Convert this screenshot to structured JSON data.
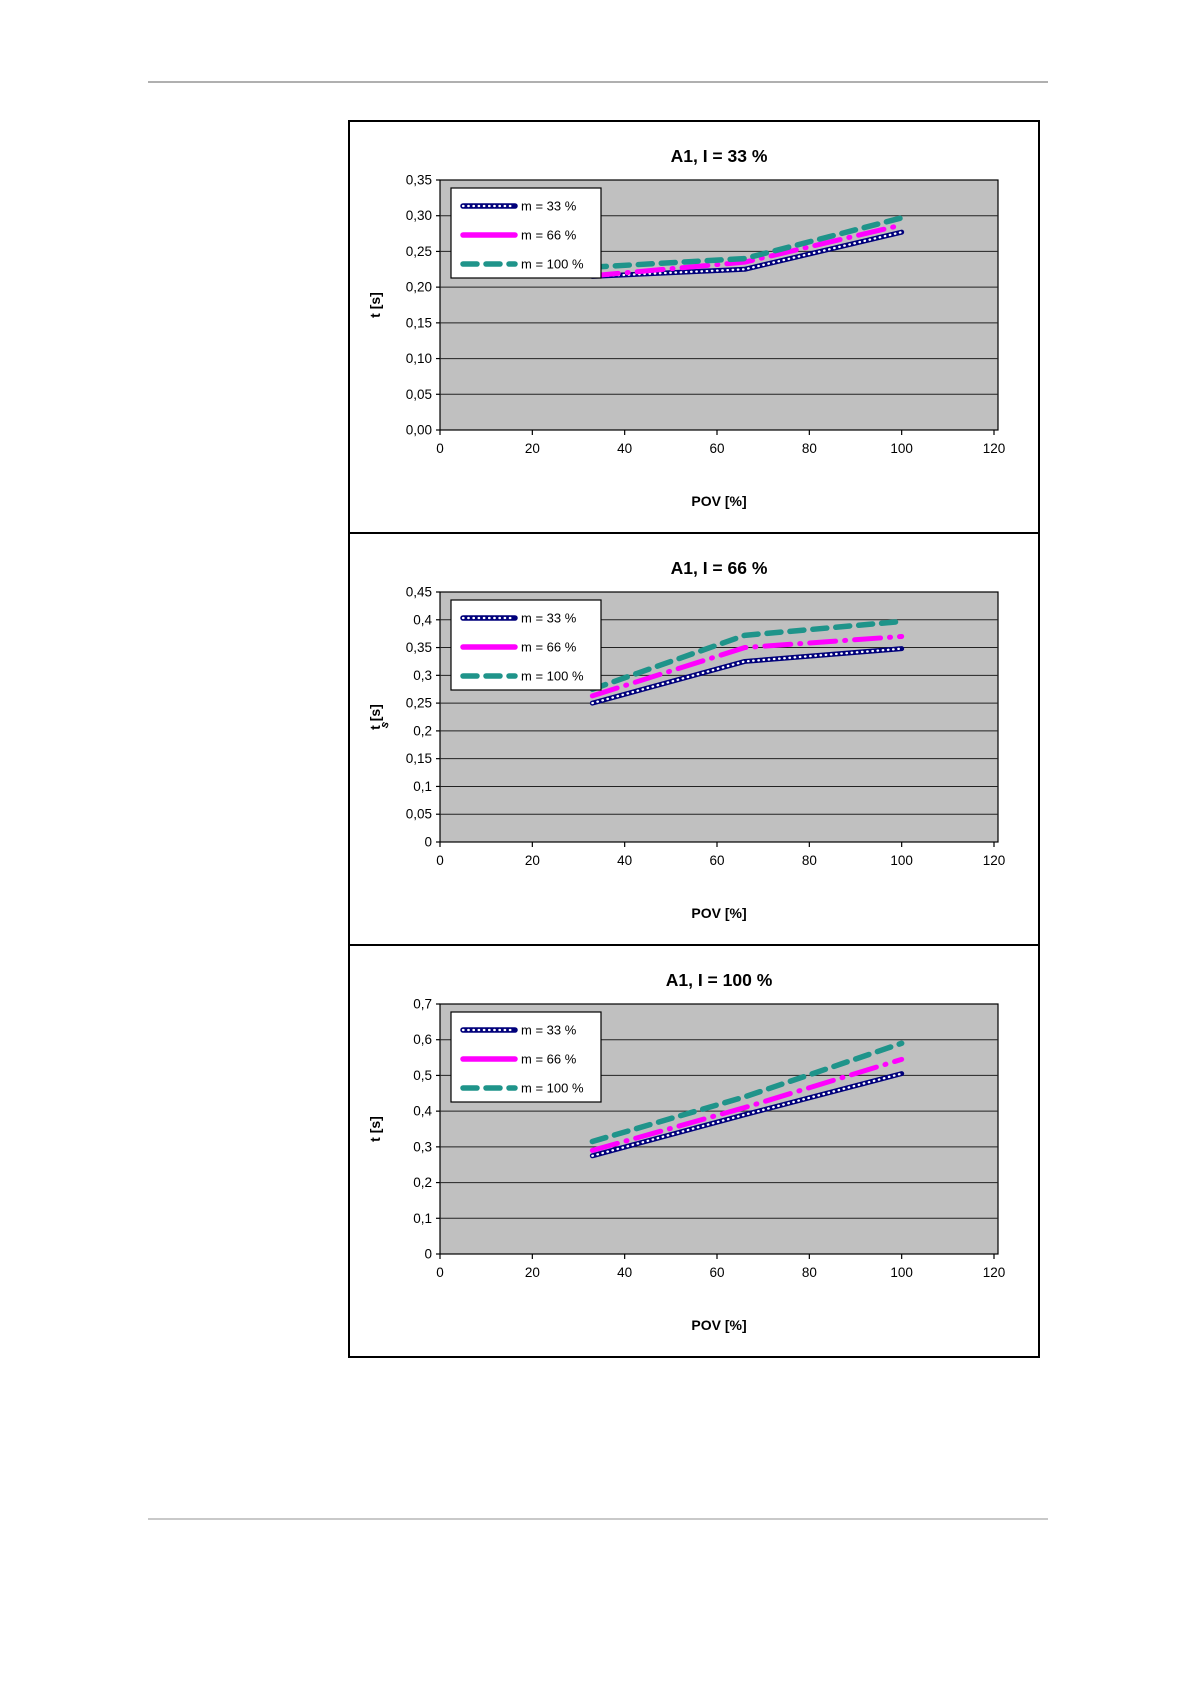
{
  "page": {
    "background": "#ffffff",
    "rule_color": "#b0b0b0"
  },
  "chart_data": [
    {
      "type": "line",
      "title": "A1, I = 33 %",
      "xlabel": "POV [%]",
      "ylabel": "t [s]",
      "ylabel_stray": "",
      "grid": true,
      "plot_bg": "#c0c0c0",
      "legend_position": "upper-left",
      "x": [
        33,
        66,
        100
      ],
      "xlim": [
        0,
        120
      ],
      "x_tick_labels": [
        "0",
        "20",
        "40",
        "60",
        "80",
        "100",
        "120"
      ],
      "ylim": [
        0,
        0.35
      ],
      "y_tick_labels_top_down": [
        "0,35",
        "0,30",
        "0,25",
        "0,20",
        "0,15",
        "0,10",
        "0,05",
        "0,00"
      ],
      "series": [
        {
          "name": "m = 33 %",
          "color": "#00007b",
          "style": "dotted-navy",
          "values": [
            0.215,
            0.225,
            0.277
          ]
        },
        {
          "name": "m = 66 %",
          "color": "#ff00ff",
          "style": "dash-dot",
          "values": [
            0.216,
            0.235,
            0.287
          ]
        },
        {
          "name": "m = 100 %",
          "color": "#1f948a",
          "style": "dashed",
          "values": [
            0.228,
            0.24,
            0.297
          ]
        }
      ]
    },
    {
      "type": "line",
      "title": "A1, I = 66 %",
      "xlabel": "POV [%]",
      "ylabel": "t [s]",
      "ylabel_stray": "s",
      "grid": true,
      "plot_bg": "#c0c0c0",
      "legend_position": "upper-left",
      "x": [
        33,
        66,
        100
      ],
      "xlim": [
        0,
        120
      ],
      "x_tick_labels": [
        "0",
        "20",
        "40",
        "60",
        "80",
        "100",
        "120"
      ],
      "ylim": [
        0,
        0.45
      ],
      "y_tick_labels_top_down": [
        "0,45",
        "0,4",
        "0,35",
        "0,3",
        "0,25",
        "0,2",
        "0,15",
        "0,1",
        "0,05",
        "0"
      ],
      "series": [
        {
          "name": "m = 33 %",
          "color": "#00007b",
          "style": "dotted-navy",
          "values": [
            0.25,
            0.325,
            0.348
          ]
        },
        {
          "name": "m = 66 %",
          "color": "#ff00ff",
          "style": "dash-dot",
          "values": [
            0.263,
            0.35,
            0.37
          ]
        },
        {
          "name": "m = 100 %",
          "color": "#1f948a",
          "style": "dashed",
          "values": [
            0.275,
            0.372,
            0.397
          ]
        }
      ]
    },
    {
      "type": "line",
      "title": "A1, I = 100 %",
      "xlabel": "POV [%]",
      "ylabel": "t [s]",
      "ylabel_stray": "",
      "grid": true,
      "plot_bg": "#c0c0c0",
      "legend_position": "upper-left",
      "x": [
        33,
        66,
        100
      ],
      "xlim": [
        0,
        120
      ],
      "x_tick_labels": [
        "0",
        "20",
        "40",
        "60",
        "80",
        "100",
        "120"
      ],
      "ylim": [
        0,
        0.7
      ],
      "y_tick_labels_top_down": [
        "0,7",
        "0,6",
        "0,5",
        "0,4",
        "0,3",
        "0,2",
        "0,1",
        "0"
      ],
      "series": [
        {
          "name": "m = 33 %",
          "color": "#00007b",
          "style": "dotted-navy",
          "values": [
            0.275,
            0.39,
            0.505
          ]
        },
        {
          "name": "m = 66 %",
          "color": "#ff00ff",
          "style": "dash-dot",
          "values": [
            0.29,
            0.41,
            0.545
          ]
        },
        {
          "name": "m = 100 %",
          "color": "#1f948a",
          "style": "dashed",
          "values": [
            0.315,
            0.44,
            0.59
          ]
        }
      ]
    }
  ]
}
